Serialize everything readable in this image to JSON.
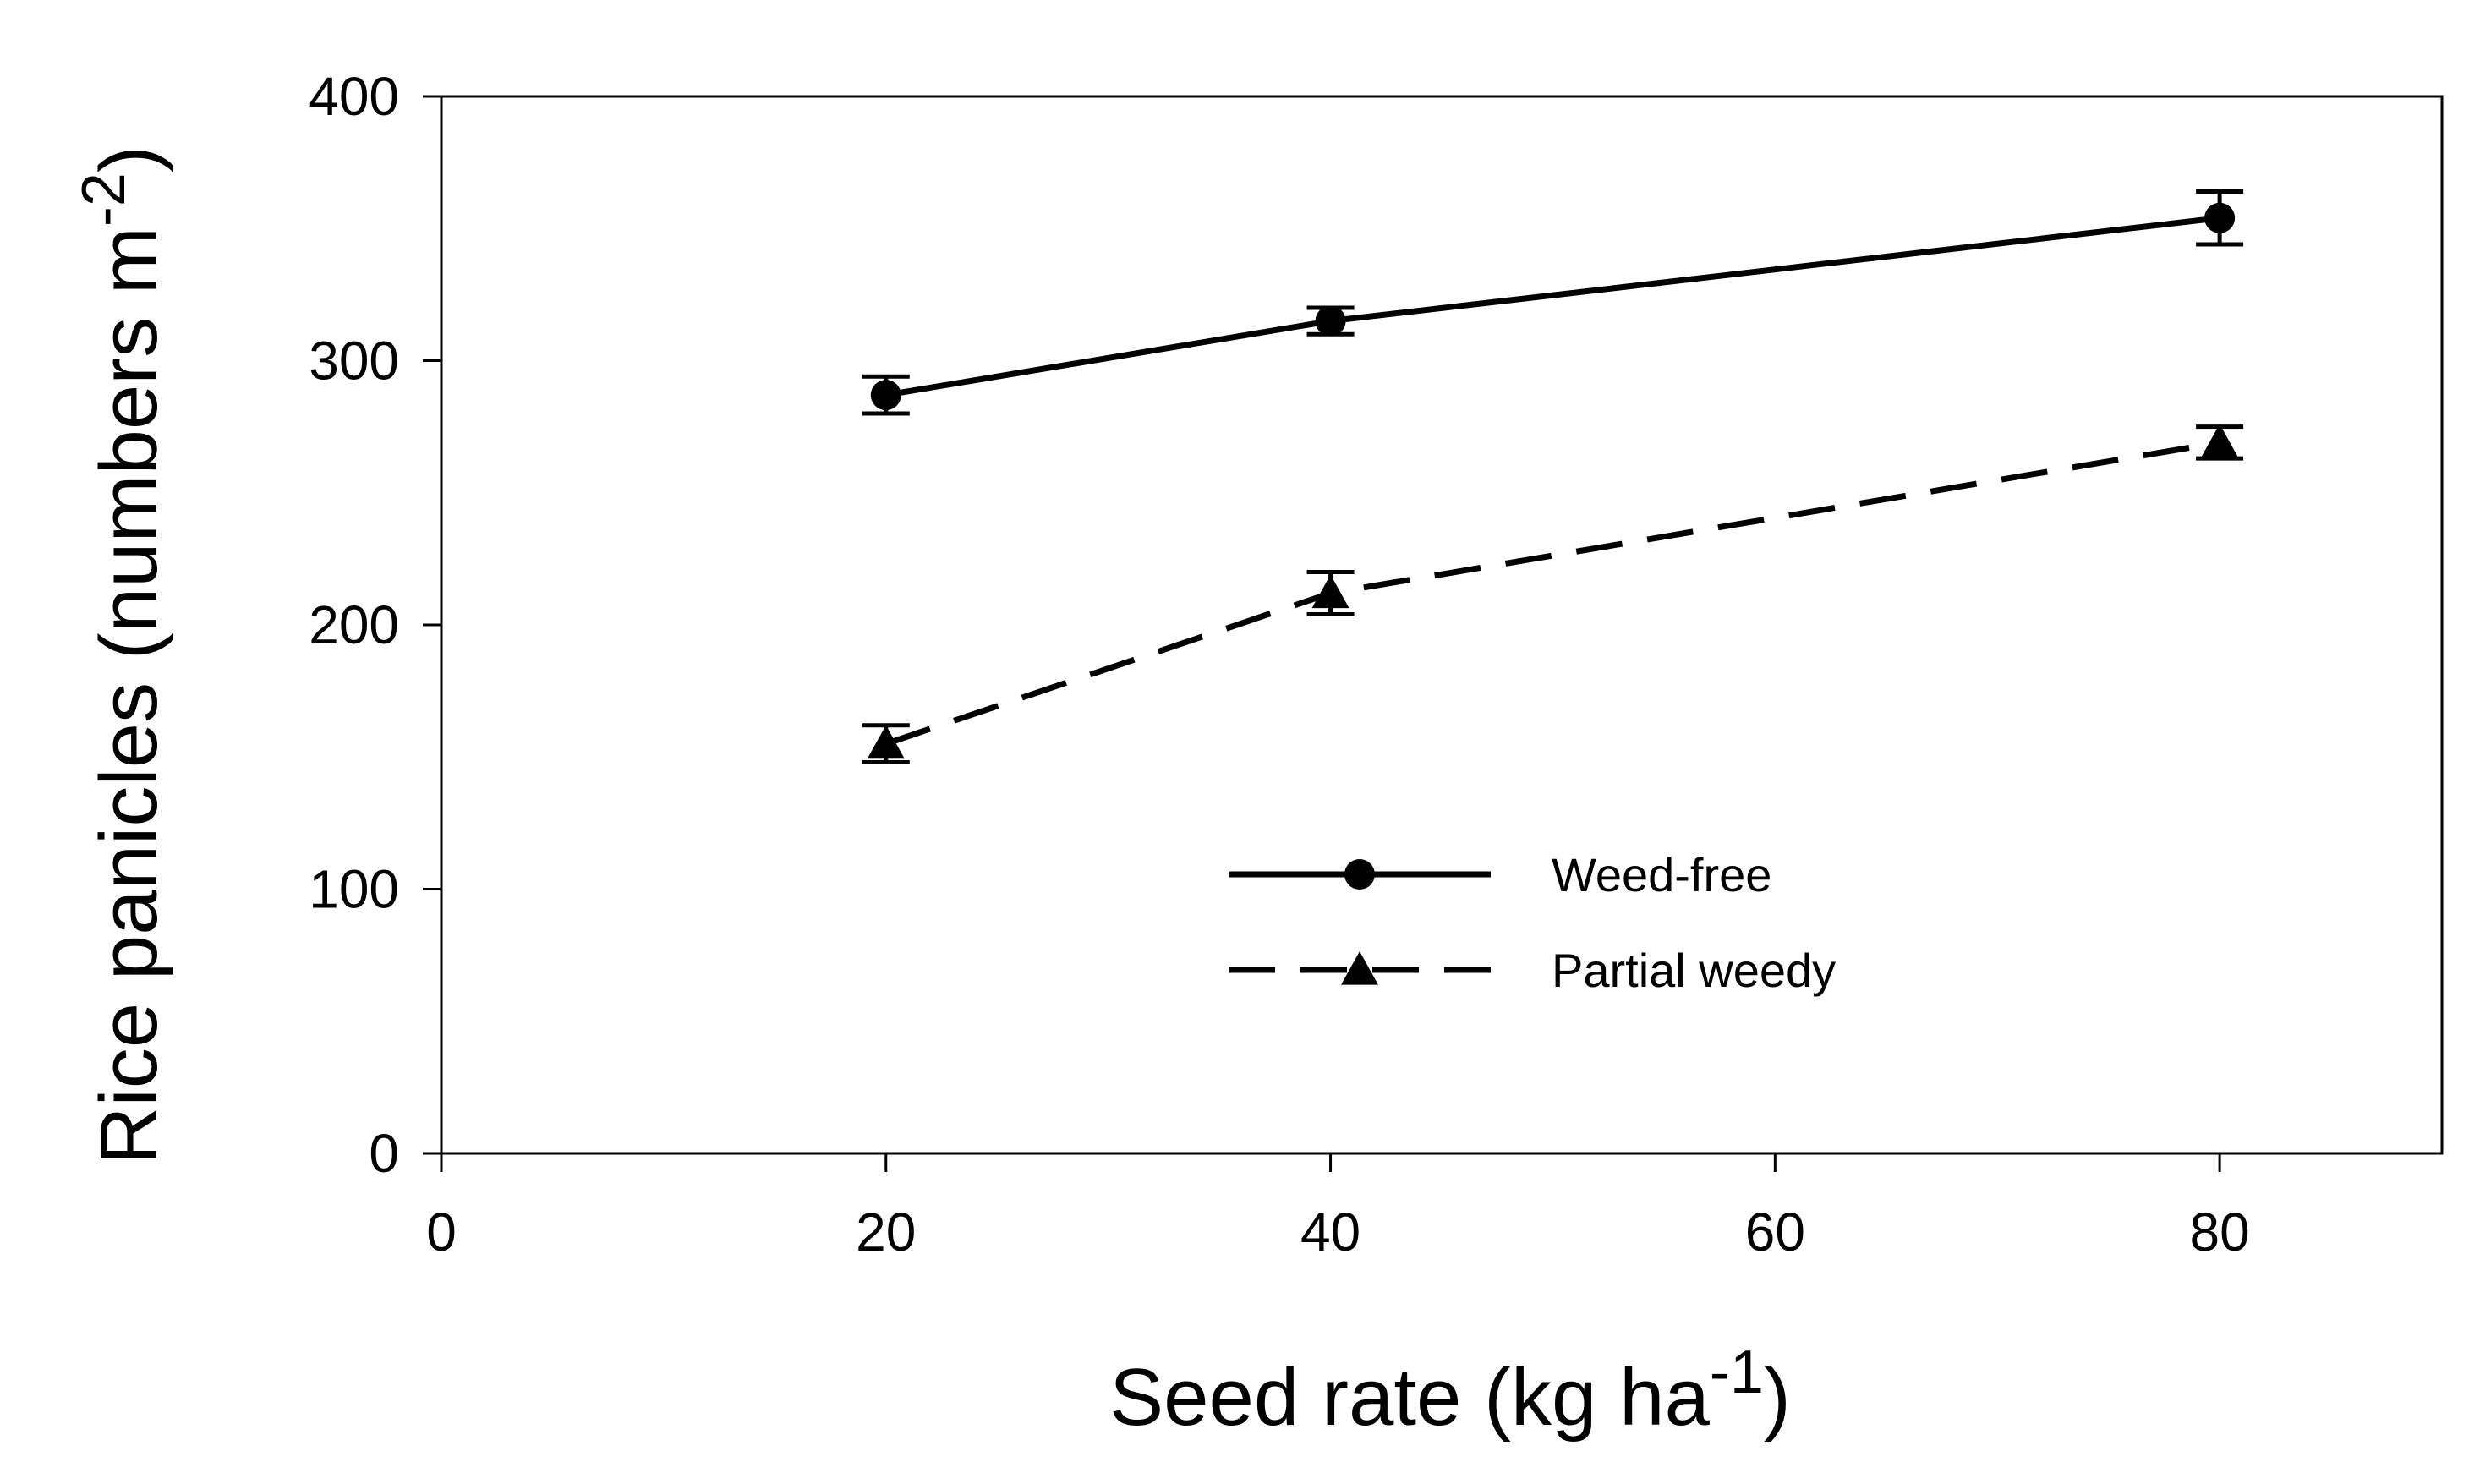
{
  "chart_data": {
    "type": "line",
    "xlabel": "Seed rate (kg ha",
    "xlabel_sup": "-1",
    "xlabel_suffix": ")",
    "ylabel": "Rice panicles (numbers m",
    "ylabel_sup": "-2",
    "ylabel_suffix": ")",
    "xlim": [
      0,
      90
    ],
    "ylim": [
      0,
      400
    ],
    "xticks": [
      0,
      20,
      40,
      60,
      80
    ],
    "yticks": [
      0,
      100,
      200,
      300,
      400
    ],
    "grid": false,
    "legend_position": "inside-lower-center",
    "series": [
      {
        "name": "Weed-free",
        "line_style": "solid",
        "marker": "circle",
        "x": [
          20,
          40,
          80
        ],
        "y": [
          287,
          315,
          354
        ],
        "error": [
          7,
          5,
          10
        ]
      },
      {
        "name": "Partial weedy",
        "line_style": "dashed",
        "marker": "triangle",
        "x": [
          20,
          40,
          80
        ],
        "y": [
          155,
          212,
          269
        ],
        "error": [
          7,
          8,
          6
        ]
      }
    ],
    "colors": {
      "line": "#000000",
      "background": "#ffffff"
    }
  }
}
